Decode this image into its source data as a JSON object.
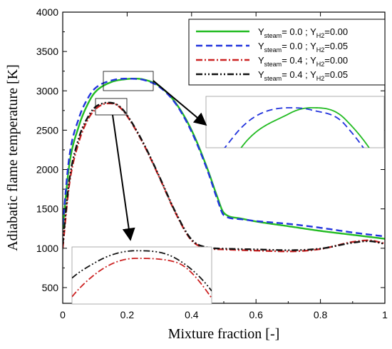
{
  "chart_data": {
    "type": "line",
    "xlabel": "Mixture fraction [-]",
    "ylabel": "Adiabatic flame temperature [K]",
    "xlim": [
      0,
      1
    ],
    "ylim": [
      300,
      4000
    ],
    "x_ticks": [
      "0",
      "0.2",
      "0.4",
      "0.6",
      "0.8",
      "1"
    ],
    "x_tick_values": [
      0,
      0.2,
      0.4,
      0.6,
      0.8,
      1.0
    ],
    "y_ticks": [
      "500",
      "1000",
      "1500",
      "2000",
      "2500",
      "3000",
      "3500",
      "4000"
    ],
    "y_tick_values": [
      500,
      1000,
      1500,
      2000,
      2500,
      3000,
      3500,
      4000
    ],
    "legend_position": "top-right",
    "series": [
      {
        "legend": {
          "a": "Y",
          "a_sub": "steam",
          "b": "=    0.0 ; Y",
          "b_sub": "H2",
          "c": "=0.00"
        },
        "color": "#22bb22",
        "dash": "solid",
        "x": [
          0.0,
          0.02,
          0.05,
          0.08,
          0.1,
          0.15,
          0.2,
          0.22,
          0.25,
          0.3,
          0.35,
          0.4,
          0.45,
          0.48,
          0.5,
          0.55,
          0.6,
          0.7,
          0.8,
          0.9,
          1.0
        ],
        "y": [
          1250,
          2050,
          2550,
          2850,
          2980,
          3110,
          3150,
          3155,
          3145,
          3060,
          2850,
          2500,
          2000,
          1650,
          1450,
          1380,
          1340,
          1280,
          1220,
          1170,
          1120
        ]
      },
      {
        "legend": {
          "a": "Y",
          "a_sub": "steam",
          "b": "=    0.0 ; Y",
          "b_sub": "H2",
          "c": "=0.05"
        },
        "color": "#2233dd",
        "dash": "dashed",
        "x": [
          0.0,
          0.02,
          0.05,
          0.08,
          0.1,
          0.15,
          0.2,
          0.22,
          0.25,
          0.3,
          0.35,
          0.4,
          0.45,
          0.48,
          0.5,
          0.55,
          0.6,
          0.7,
          0.8,
          0.9,
          1.0
        ],
        "y": [
          1300,
          2150,
          2650,
          2920,
          3030,
          3130,
          3155,
          3153,
          3140,
          3050,
          2840,
          2480,
          1980,
          1620,
          1420,
          1370,
          1345,
          1310,
          1260,
          1200,
          1150
        ]
      },
      {
        "legend": {
          "a": "Y",
          "a_sub": "steam",
          "b": "=    0.4 ; Y",
          "b_sub": "H2",
          "c": "=0.00"
        },
        "color": "#cc2222",
        "dash": "dashdot",
        "x": [
          0.0,
          0.02,
          0.05,
          0.08,
          0.1,
          0.12,
          0.14,
          0.16,
          0.18,
          0.2,
          0.25,
          0.3,
          0.35,
          0.4,
          0.45,
          0.5,
          0.6,
          0.7,
          0.8,
          0.9,
          0.95,
          1.0
        ],
        "y": [
          1000,
          1800,
          2350,
          2650,
          2760,
          2820,
          2840,
          2835,
          2780,
          2680,
          2330,
          1900,
          1450,
          1100,
          1000,
          985,
          970,
          960,
          990,
          1080,
          1100,
          1060
        ]
      },
      {
        "legend": {
          "a": "Y",
          "a_sub": "steam",
          "b": "=    0.4 ; Y",
          "b_sub": "H2",
          "c": "=0.05"
        },
        "color": "#111111",
        "dash": "dashdotdot",
        "x": [
          0.0,
          0.02,
          0.05,
          0.08,
          0.1,
          0.12,
          0.14,
          0.16,
          0.18,
          0.2,
          0.25,
          0.3,
          0.35,
          0.4,
          0.45,
          0.5,
          0.6,
          0.7,
          0.8,
          0.9,
          0.95,
          1.0
        ],
        "y": [
          1050,
          1850,
          2400,
          2680,
          2790,
          2835,
          2850,
          2840,
          2790,
          2690,
          2340,
          1910,
          1460,
          1110,
          1010,
          995,
          985,
          975,
          995,
          1070,
          1090,
          1055
        ]
      }
    ]
  }
}
